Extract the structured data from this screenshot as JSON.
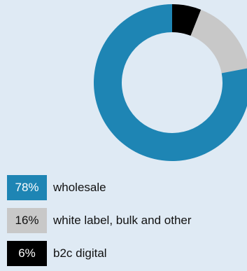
{
  "chart_data": {
    "type": "pie",
    "title": "",
    "categories": [
      "wholesale",
      "white label, bulk and other",
      "b2c digital"
    ],
    "values": [
      78,
      16,
      6
    ],
    "labels": [
      "78%",
      "16%",
      "6%"
    ],
    "colors": [
      "#1e85b4",
      "#c8c8c8",
      "#000000"
    ],
    "label_colors": [
      "#ffffff",
      "#111111",
      "#ffffff"
    ],
    "donut": true,
    "legend": "bottom-left"
  }
}
